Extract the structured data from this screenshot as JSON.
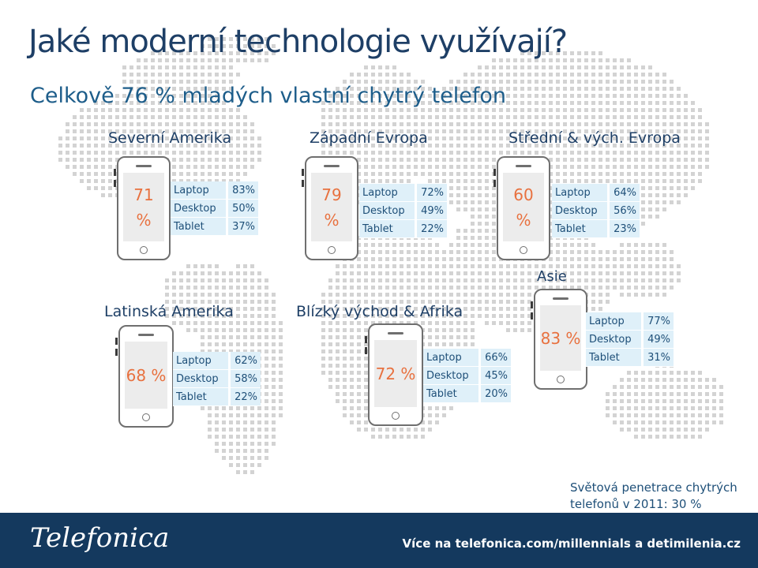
{
  "title": "Jaké moderní technologie využívají?",
  "subtitle": "Celkově 76 % mladých vlastní chytrý telefon",
  "regions": [
    {
      "name": "Severní Amerika",
      "phone_pct": "71 %",
      "rows": [
        {
          "label": "Laptop",
          "value": "83%"
        },
        {
          "label": "Desktop",
          "value": "50%"
        },
        {
          "label": "Tablet",
          "value": "37%"
        }
      ]
    },
    {
      "name": "Západní Evropa",
      "phone_pct": "79 %",
      "rows": [
        {
          "label": "Laptop",
          "value": "72%"
        },
        {
          "label": "Desktop",
          "value": "49%"
        },
        {
          "label": "Tablet",
          "value": "22%"
        }
      ]
    },
    {
      "name": "Střední & vých. Evropa",
      "phone_pct": "60 %",
      "rows": [
        {
          "label": "Laptop",
          "value": "64%"
        },
        {
          "label": "Desktop",
          "value": "56%"
        },
        {
          "label": "Tablet",
          "value": "23%"
        }
      ]
    },
    {
      "name": "Latinská Amerika",
      "phone_pct": "68 %",
      "rows": [
        {
          "label": "Laptop",
          "value": "62%"
        },
        {
          "label": "Desktop",
          "value": "58%"
        },
        {
          "label": "Tablet",
          "value": "22%"
        }
      ]
    },
    {
      "name": "Blízký východ & Afrika",
      "phone_pct": "72 %",
      "rows": [
        {
          "label": "Laptop",
          "value": "66%"
        },
        {
          "label": "Desktop",
          "value": "45%"
        },
        {
          "label": "Tablet",
          "value": "20%"
        }
      ]
    },
    {
      "name": "Asie",
      "phone_pct": "83 %",
      "rows": [
        {
          "label": "Laptop",
          "value": "77%"
        },
        {
          "label": "Desktop",
          "value": "49%"
        },
        {
          "label": "Tablet",
          "value": "31%"
        }
      ]
    }
  ],
  "world_note": "Světová penetrace chytrých telefonů v 2011: 30 %",
  "footer": {
    "logo": "Telefonica",
    "url": "Více na telefonica.com/millennials a detimilenia.cz"
  },
  "colors": {
    "title": "#1e3f66",
    "accent": "#e8713f",
    "table_bg": "#dff0f9",
    "footer_bg": "#14395e",
    "map_dots": "#d3d3d3"
  }
}
